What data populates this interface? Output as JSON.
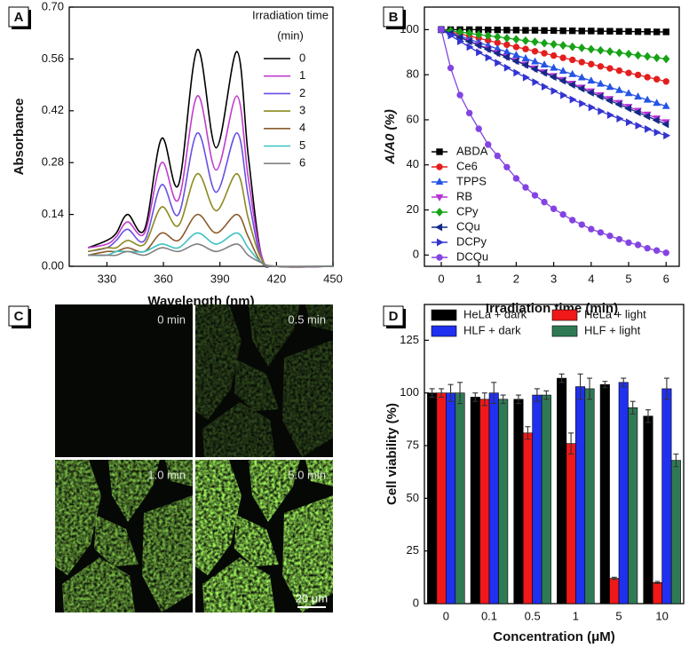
{
  "chart_data": [
    {
      "type": "line",
      "panel_label": "A",
      "x_label": "Wavelength (nm)",
      "y_label": "Absorbance",
      "legend_title": [
        "Irradiation time",
        "(min)"
      ],
      "legend": "upper right",
      "x": [
        320,
        330,
        335,
        341,
        350,
        359,
        368,
        378,
        388,
        399,
        405,
        412,
        420,
        450
      ],
      "xlim": [
        310,
        450
      ],
      "xticks": [
        330,
        360,
        390,
        420,
        450
      ],
      "ylim": [
        0,
        0.7
      ],
      "yticks": [
        {
          "value": 0,
          "label": "0.00"
        },
        0.14,
        0.28,
        0.42,
        0.56,
        {
          "value": 0.7,
          "label": "0.70"
        }
      ],
      "series": [
        {
          "name": "0",
          "color": "#000000",
          "values": [
            0.05,
            0.07,
            0.09,
            0.14,
            0.1,
            0.345,
            0.22,
            0.585,
            0.32,
            0.58,
            0.3,
            0.03,
            0,
            0
          ]
        },
        {
          "name": "1",
          "color": "#c03ccc",
          "values": [
            0.05,
            0.06,
            0.08,
            0.12,
            0.09,
            0.28,
            0.18,
            0.46,
            0.26,
            0.46,
            0.24,
            0.03,
            0,
            0
          ]
        },
        {
          "name": "2",
          "color": "#6a4ee6",
          "values": [
            0.04,
            0.05,
            0.07,
            0.1,
            0.07,
            0.22,
            0.14,
            0.36,
            0.2,
            0.36,
            0.19,
            0.02,
            0,
            0
          ]
        },
        {
          "name": "3",
          "color": "#8c8a1e",
          "values": [
            0.04,
            0.05,
            0.05,
            0.07,
            0.06,
            0.16,
            0.11,
            0.25,
            0.15,
            0.25,
            0.13,
            0.02,
            0,
            0
          ]
        },
        {
          "name": "4",
          "color": "#8a5a2c",
          "values": [
            0.03,
            0.04,
            0.04,
            0.05,
            0.04,
            0.09,
            0.07,
            0.14,
            0.09,
            0.14,
            0.08,
            0.01,
            0,
            0
          ]
        },
        {
          "name": "5",
          "color": "#3cc2c2",
          "values": [
            0.03,
            0.03,
            0.04,
            0.04,
            0.04,
            0.06,
            0.05,
            0.09,
            0.06,
            0.09,
            0.05,
            0.01,
            0,
            0
          ]
        },
        {
          "name": "6",
          "color": "#808080",
          "values": [
            0.03,
            0.03,
            0.03,
            0.04,
            0.03,
            0.05,
            0.04,
            0.06,
            0.04,
            0.06,
            0.03,
            0.01,
            0,
            0
          ]
        }
      ]
    },
    {
      "type": "line",
      "panel_label": "B",
      "x_label": "Irradiation time (min)",
      "y_label": "A/A0 (%)",
      "legend": "lower left",
      "x": [
        0,
        0.25,
        0.5,
        0.75,
        1,
        1.25,
        1.5,
        1.75,
        2,
        2.25,
        2.5,
        2.75,
        3,
        3.25,
        3.5,
        3.75,
        4,
        4.25,
        4.5,
        4.75,
        5,
        5.25,
        5.5,
        5.75,
        6
      ],
      "xlim": [
        -0.45,
        6.35
      ],
      "xticks": [
        0,
        1,
        2,
        3,
        4,
        5,
        6
      ],
      "ylim": [
        -5,
        110
      ],
      "yticks": [
        0,
        20,
        40,
        60,
        80,
        100
      ],
      "series": [
        {
          "name": "ABDA",
          "color": "#000000",
          "marker": "square",
          "values": [
            100,
            100,
            100,
            100,
            100,
            99.9,
            99.9,
            99.8,
            99.8,
            99.7,
            99.7,
            99.6,
            99.6,
            99.5,
            99.5,
            99.4,
            99.4,
            99.3,
            99.3,
            99.2,
            99.2,
            99.1,
            99.1,
            99,
            99
          ]
        },
        {
          "name": "Ce6",
          "color": "#e41e1e",
          "marker": "circle",
          "values": [
            100,
            99,
            98.1,
            97.1,
            96.2,
            95.2,
            94.2,
            93.3,
            92.3,
            91.4,
            90.4,
            89.5,
            88.5,
            87.5,
            86.6,
            85.6,
            84.7,
            83.7,
            82.8,
            81.8,
            80.8,
            79.9,
            78.9,
            78,
            77
          ]
        },
        {
          "name": "TPPS",
          "color": "#2454e6",
          "marker": "triangle-up",
          "values": [
            100,
            98.6,
            97.2,
            95.7,
            94.3,
            92.9,
            91.5,
            90.1,
            88.7,
            87.2,
            85.8,
            84.4,
            83,
            81.6,
            80.2,
            78.7,
            77.3,
            75.9,
            74.5,
            73.1,
            71.7,
            70.2,
            68.8,
            67.4,
            66
          ]
        },
        {
          "name": "RB",
          "color": "#b433d6",
          "marker": "triangle-down",
          "values": [
            100,
            98.3,
            96.6,
            94.9,
            93.2,
            91.5,
            89.8,
            88,
            86.3,
            84.6,
            82.9,
            81.2,
            79.5,
            77.8,
            76.1,
            74.4,
            72.7,
            71,
            69.3,
            67.6,
            65.8,
            64.1,
            62.4,
            60.7,
            59
          ]
        },
        {
          "name": "CPy",
          "color": "#16a316",
          "marker": "diamond",
          "values": [
            100,
            99.5,
            98.9,
            98.4,
            97.8,
            97.3,
            96.8,
            96.2,
            95.7,
            95.1,
            94.6,
            94,
            93.5,
            93,
            92.4,
            91.9,
            91.3,
            90.8,
            90.3,
            89.7,
            89.2,
            88.6,
            88.1,
            87.5,
            87
          ]
        },
        {
          "name": "CQu",
          "color": "#142a86",
          "marker": "triangle-left",
          "values": [
            100,
            98.3,
            96.5,
            94.8,
            93,
            91.3,
            89.5,
            87.8,
            86,
            84.3,
            82.5,
            80.8,
            79,
            77.3,
            75.5,
            73.8,
            72,
            70.3,
            68.5,
            66.8,
            65,
            63.3,
            61.5,
            59.8,
            58
          ]
        },
        {
          "name": "DCPy",
          "color": "#3434d2",
          "marker": "triangle-right",
          "values": [
            100,
            97.4,
            94.8,
            92.3,
            89.9,
            87.6,
            85.3,
            83.1,
            80.9,
            78.8,
            76.7,
            74.7,
            72.8,
            70.9,
            69,
            67.2,
            65.5,
            63.8,
            62.1,
            60.5,
            58.9,
            57.4,
            55.9,
            54.4,
            53
          ]
        },
        {
          "name": "DCQu",
          "color": "#8444e2",
          "marker": "circle",
          "values": [
            100,
            83,
            71,
            63,
            56,
            49,
            44,
            39,
            34,
            30,
            26.5,
            23.5,
            20.5,
            18,
            15.5,
            13.5,
            11.5,
            10,
            8.5,
            7,
            5.5,
            4.5,
            3,
            2,
            1
          ]
        }
      ]
    },
    {
      "type": "bar",
      "panel_label": "D",
      "x_label": "Concentration (μM)",
      "y_label": "Cell viability (%)",
      "legend": "upper center",
      "categories": [
        "0",
        "0.1",
        "0.5",
        "1",
        "5",
        "10"
      ],
      "ylim": [
        0,
        142
      ],
      "yticks": [
        0,
        25,
        50,
        75,
        100,
        125
      ],
      "series": [
        {
          "name": "HeLa + dark",
          "color": "#000000",
          "values": [
            100,
            98,
            97,
            107,
            104,
            89
          ],
          "errors": [
            2,
            2,
            2,
            2,
            1.5,
            3
          ]
        },
        {
          "name": "HeLa + light",
          "color": "#f01818",
          "values": [
            100,
            97,
            81,
            76,
            12,
            10
          ],
          "errors": [
            2,
            3,
            3,
            5,
            0.5,
            0.5
          ]
        },
        {
          "name": "HLF + dark",
          "color": "#1f30f0",
          "values": [
            100,
            100,
            99,
            103,
            105,
            102
          ],
          "errors": [
            4,
            5,
            3,
            6,
            2,
            5
          ]
        },
        {
          "name": "HLF + light",
          "color": "#2f7a55",
          "values": [
            100,
            97,
            99,
            102,
            93,
            68
          ],
          "errors": [
            5,
            2,
            2,
            5,
            3,
            3
          ]
        }
      ]
    }
  ],
  "image_panel": {
    "panel_label": "C",
    "frames": [
      "0 min",
      "0.5 min",
      "1.0 min",
      "5.0 min"
    ],
    "scale_bar": "20 μm"
  }
}
